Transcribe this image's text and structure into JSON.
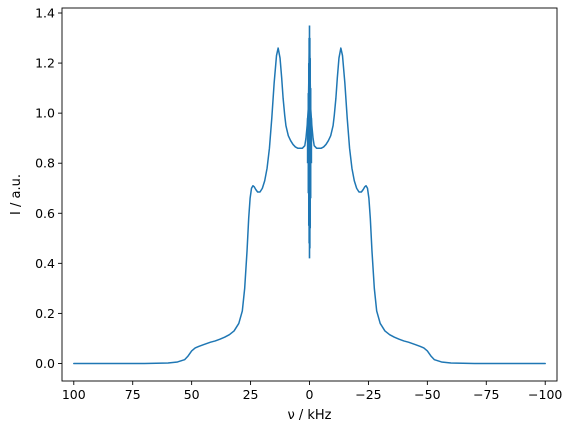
{
  "chart_data": {
    "type": "line",
    "title": "",
    "xlabel": "ν / kHz",
    "ylabel": "I / a.u.",
    "xlim": [
      105,
      -105
    ],
    "ylim": [
      -0.07,
      1.42
    ],
    "x_inverted": true,
    "grid": false,
    "legend": "none",
    "xticks": [
      100,
      75,
      50,
      25,
      0,
      -25,
      -50,
      -75,
      -100
    ],
    "xtick_labels": [
      "100",
      "75",
      "50",
      "25",
      "0",
      "−25",
      "−50",
      "−75",
      "−100"
    ],
    "yticks": [
      0.0,
      0.2,
      0.4,
      0.6,
      0.8,
      1.0,
      1.2,
      1.4
    ],
    "ytick_labels": [
      "0.0",
      "0.2",
      "0.4",
      "0.6",
      "0.8",
      "1.0",
      "1.2",
      "1.4"
    ],
    "series": [
      {
        "color": "#1f77b4",
        "x": [
          100,
          90,
          80,
          70,
          60,
          56,
          53,
          51.5,
          50,
          48.5,
          47,
          45,
          42,
          40,
          38,
          36,
          34,
          32,
          30,
          28.5,
          27.5,
          26.5,
          25.8,
          25.2,
          24.6,
          24,
          23.4,
          22.8,
          22,
          21,
          20,
          19,
          18,
          17,
          16,
          15,
          14,
          13.3,
          12.5,
          11.8,
          11.2,
          10.5,
          10,
          9.5,
          9,
          8.5,
          8,
          7,
          6,
          5,
          4,
          3,
          2,
          1.5,
          1,
          0.5,
          0,
          -0.5,
          -1,
          -1.5,
          -2,
          -3,
          -4,
          -5,
          -6,
          -7,
          -8,
          -8.5,
          -9,
          -9.5,
          -10,
          -10.5,
          -11.2,
          -11.8,
          -12.5,
          -13.3,
          -14,
          -15,
          -16,
          -17,
          -18,
          -19,
          -20,
          -21,
          -22,
          -22.8,
          -23.4,
          -24,
          -24.6,
          -25.2,
          -25.8,
          -26.5,
          -27.5,
          -28.5,
          -30,
          -32,
          -34,
          -36,
          -38,
          -40,
          -42,
          -45,
          -47,
          -48.5,
          -50,
          -51.5,
          -53,
          -56,
          -60,
          -70,
          -80,
          -90,
          -100
        ],
        "y": [
          0.0,
          0.0,
          0.0,
          0.0,
          0.002,
          0.006,
          0.015,
          0.03,
          0.05,
          0.062,
          0.068,
          0.075,
          0.085,
          0.09,
          0.097,
          0.105,
          0.115,
          0.13,
          0.16,
          0.21,
          0.3,
          0.45,
          0.58,
          0.66,
          0.7,
          0.71,
          0.705,
          0.695,
          0.685,
          0.685,
          0.7,
          0.73,
          0.78,
          0.86,
          0.98,
          1.12,
          1.23,
          1.26,
          1.22,
          1.14,
          1.06,
          0.99,
          0.95,
          0.93,
          0.91,
          0.9,
          0.89,
          0.875,
          0.865,
          0.86,
          0.86,
          0.86,
          0.87,
          0.9,
          0.95,
          1.02,
          1.3,
          1.02,
          0.95,
          0.9,
          0.87,
          0.86,
          0.86,
          0.86,
          0.865,
          0.875,
          0.89,
          0.9,
          0.91,
          0.93,
          0.95,
          0.99,
          1.06,
          1.14,
          1.22,
          1.26,
          1.23,
          1.12,
          0.98,
          0.86,
          0.78,
          0.73,
          0.7,
          0.685,
          0.685,
          0.695,
          0.705,
          0.71,
          0.7,
          0.66,
          0.58,
          0.45,
          0.3,
          0.21,
          0.16,
          0.13,
          0.115,
          0.105,
          0.097,
          0.09,
          0.085,
          0.075,
          0.068,
          0.062,
          0.05,
          0.03,
          0.015,
          0.006,
          0.002,
          0.0,
          0.0,
          0.0,
          0.0
        ]
      },
      {
        "color": "#1f77b4",
        "kind": "noise_spikes",
        "x": [
          0.8,
          0.5,
          0.3,
          0.15,
          0.0,
          -0.15,
          -0.3,
          -0.5,
          -0.8
        ],
        "y_low": [
          0.8,
          0.68,
          0.55,
          0.48,
          0.42,
          0.46,
          0.54,
          0.66,
          0.8
        ],
        "y_high": [
          0.98,
          1.08,
          1.2,
          1.3,
          1.35,
          1.3,
          1.22,
          1.1,
          0.98
        ]
      }
    ]
  }
}
